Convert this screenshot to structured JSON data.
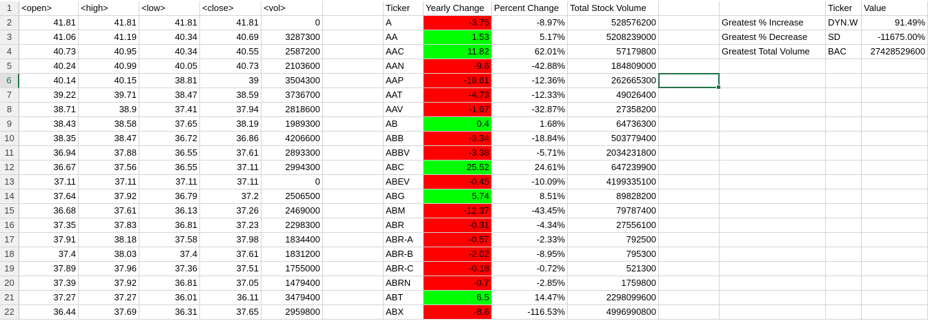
{
  "headers": {
    "a": "<open>",
    "b": "<high>",
    "c": "<low>",
    "d": "<close>",
    "e": "<vol>",
    "f": "Ticker",
    "g": "Yearly Change",
    "h": "Percent Change",
    "i": "Total Stock Volume",
    "k": "Ticker",
    "l": "Value"
  },
  "colors": {
    "positive": "#00ff00",
    "negative": "#ff0000",
    "selection": "#217346"
  },
  "selected_row": 6,
  "rows": [
    {
      "n": "2",
      "open": "41.81",
      "high": "41.81",
      "low": "41.81",
      "close": "41.81",
      "vol": "0",
      "ticker": "A",
      "change": "-3.75",
      "pct": "-8.97%",
      "total": "528576200",
      "pos": false
    },
    {
      "n": "3",
      "open": "41.06",
      "high": "41.19",
      "low": "40.34",
      "close": "40.69",
      "vol": "3287300",
      "ticker": "AA",
      "change": "1.53",
      "pct": "5.17%",
      "total": "5208239000",
      "pos": true
    },
    {
      "n": "4",
      "open": "40.73",
      "high": "40.95",
      "low": "40.34",
      "close": "40.55",
      "vol": "2587200",
      "ticker": "AAC",
      "change": "11.82",
      "pct": "62.01%",
      "total": "57179800",
      "pos": true
    },
    {
      "n": "5",
      "open": "40.24",
      "high": "40.99",
      "low": "40.05",
      "close": "40.73",
      "vol": "2103600",
      "ticker": "AAN",
      "change": "-9.6",
      "pct": "-42.88%",
      "total": "184809000",
      "pos": false
    },
    {
      "n": "6",
      "open": "40.14",
      "high": "40.15",
      "low": "38.81",
      "close": "39",
      "vol": "3504300",
      "ticker": "AAP",
      "change": "-18.61",
      "pct": "-12.36%",
      "total": "262665300",
      "pos": false
    },
    {
      "n": "7",
      "open": "39.22",
      "high": "39.71",
      "low": "38.47",
      "close": "38.59",
      "vol": "3736700",
      "ticker": "AAT",
      "change": "-4.73",
      "pct": "-12.33%",
      "total": "49026400",
      "pos": false
    },
    {
      "n": "8",
      "open": "38.71",
      "high": "38.9",
      "low": "37.41",
      "close": "37.94",
      "vol": "2818600",
      "ticker": "AAV",
      "change": "-1.67",
      "pct": "-32.87%",
      "total": "27358200",
      "pos": false
    },
    {
      "n": "9",
      "open": "38.43",
      "high": "38.58",
      "low": "37.65",
      "close": "38.19",
      "vol": "1989300",
      "ticker": "AB",
      "change": "0.4",
      "pct": "1.68%",
      "total": "64736300",
      "pos": true
    },
    {
      "n": "10",
      "open": "38.35",
      "high": "38.47",
      "low": "36.72",
      "close": "36.86",
      "vol": "4206600",
      "ticker": "ABB",
      "change": "-3.34",
      "pct": "-18.84%",
      "total": "503779400",
      "pos": false
    },
    {
      "n": "11",
      "open": "36.94",
      "high": "37.88",
      "low": "36.55",
      "close": "37.61",
      "vol": "2893300",
      "ticker": "ABBV",
      "change": "-3.38",
      "pct": "-5.71%",
      "total": "2034231800",
      "pos": false
    },
    {
      "n": "12",
      "open": "36.67",
      "high": "37.56",
      "low": "36.55",
      "close": "37.11",
      "vol": "2994300",
      "ticker": "ABC",
      "change": "25.52",
      "pct": "24.61%",
      "total": "647239900",
      "pos": true
    },
    {
      "n": "13",
      "open": "37.11",
      "high": "37.11",
      "low": "37.11",
      "close": "37.11",
      "vol": "0",
      "ticker": "ABEV",
      "change": "-0.45",
      "pct": "-10.09%",
      "total": "4199335100",
      "pos": false
    },
    {
      "n": "14",
      "open": "37.64",
      "high": "37.92",
      "low": "36.79",
      "close": "37.2",
      "vol": "2506500",
      "ticker": "ABG",
      "change": "5.74",
      "pct": "8.51%",
      "total": "89828200",
      "pos": true
    },
    {
      "n": "15",
      "open": "36.68",
      "high": "37.61",
      "low": "36.13",
      "close": "37.26",
      "vol": "2469000",
      "ticker": "ABM",
      "change": "-12.37",
      "pct": "-43.45%",
      "total": "79787400",
      "pos": false
    },
    {
      "n": "16",
      "open": "37.35",
      "high": "37.83",
      "low": "36.81",
      "close": "37.23",
      "vol": "2298300",
      "ticker": "ABR",
      "change": "-0.31",
      "pct": "-4.34%",
      "total": "27556100",
      "pos": false
    },
    {
      "n": "17",
      "open": "37.91",
      "high": "38.18",
      "low": "37.58",
      "close": "37.98",
      "vol": "1834400",
      "ticker": "ABR-A",
      "change": "-0.57",
      "pct": "-2.33%",
      "total": "792500",
      "pos": false
    },
    {
      "n": "18",
      "open": "37.4",
      "high": "38.03",
      "low": "37.4",
      "close": "37.61",
      "vol": "1831200",
      "ticker": "ABR-B",
      "change": "-2.02",
      "pct": "-8.95%",
      "total": "795300",
      "pos": false
    },
    {
      "n": "19",
      "open": "37.89",
      "high": "37.96",
      "low": "37.36",
      "close": "37.51",
      "vol": "1755000",
      "ticker": "ABR-C",
      "change": "-0.18",
      "pct": "-0.72%",
      "total": "521300",
      "pos": false
    },
    {
      "n": "20",
      "open": "37.39",
      "high": "37.92",
      "low": "36.81",
      "close": "37.05",
      "vol": "1479400",
      "ticker": "ABRN",
      "change": "-0.7",
      "pct": "-2.85%",
      "total": "1759800",
      "pos": false
    },
    {
      "n": "21",
      "open": "37.27",
      "high": "37.27",
      "low": "36.01",
      "close": "36.11",
      "vol": "3479400",
      "ticker": "ABT",
      "change": "6.5",
      "pct": "14.47%",
      "total": "2298099600",
      "pos": true
    },
    {
      "n": "22",
      "open": "36.44",
      "high": "37.69",
      "low": "36.31",
      "close": "37.65",
      "vol": "2959800",
      "ticker": "ABX",
      "change": "-8.6",
      "pct": "-116.53%",
      "total": "4996990800",
      "pos": false
    }
  ],
  "summary": [
    {
      "label": "Greatest % Increase",
      "ticker": "DYN.W",
      "value": "91.49%"
    },
    {
      "label": "Greatest % Decrease",
      "ticker": "SD",
      "value": "-11675.00%"
    },
    {
      "label": "Greatest Total Volume",
      "ticker": "BAC",
      "value": "27428529600"
    }
  ]
}
